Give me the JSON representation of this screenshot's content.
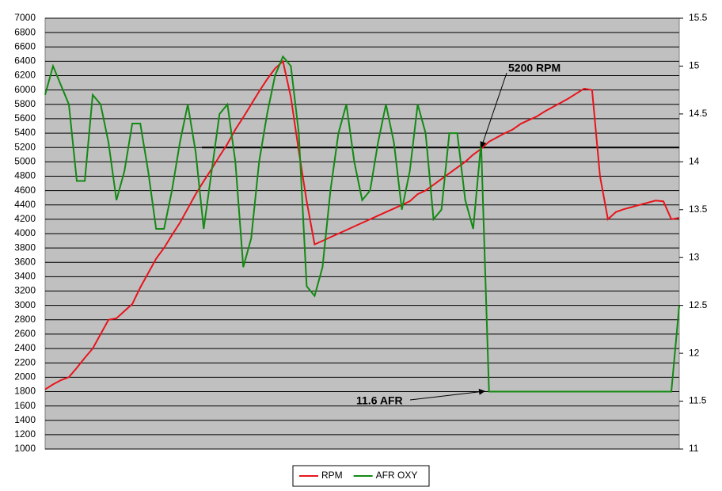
{
  "chart_data": {
    "type": "line",
    "series": [
      {
        "name": "RPM",
        "color": "#e8141c",
        "values": [
          1830,
          1900,
          1960,
          2000,
          2130,
          2270,
          2400,
          2600,
          2800,
          2820,
          2920,
          3020,
          3250,
          3450,
          3650,
          3800,
          3980,
          4150,
          4350,
          4550,
          4730,
          4900,
          5080,
          5250,
          5450,
          5620,
          5800,
          5980,
          6150,
          6300,
          6400,
          5900,
          5150,
          4450,
          3850,
          3900,
          3950,
          4000,
          4050,
          4100,
          4150,
          4200,
          4250,
          4300,
          4350,
          4400,
          4450,
          4550,
          4600,
          4680,
          4760,
          4840,
          4920,
          5000,
          5100,
          5180,
          5280,
          5340,
          5400,
          5450,
          5530,
          5580,
          5630,
          5700,
          5760,
          5820,
          5880,
          5950,
          6020,
          6000,
          4800,
          4200,
          4300,
          4340,
          4370,
          4400,
          4430,
          4460,
          4450,
          4200,
          4220
        ]
      },
      {
        "name": "AFR OXY",
        "color": "#138a13",
        "axis": "y2",
        "values": [
          14.7,
          15.0,
          14.8,
          14.6,
          13.8,
          13.8,
          14.7,
          14.6,
          14.2,
          13.6,
          13.9,
          14.4,
          14.4,
          13.9,
          13.3,
          13.3,
          13.7,
          14.2,
          14.6,
          14.1,
          13.3,
          13.9,
          14.5,
          14.6,
          14.0,
          12.9,
          13.2,
          14.0,
          14.5,
          14.9,
          15.1,
          15.0,
          14.3,
          12.7,
          12.6,
          12.9,
          13.7,
          14.3,
          14.6,
          14.0,
          13.6,
          13.7,
          14.2,
          14.6,
          14.2,
          13.5,
          13.9,
          14.6,
          14.3,
          13.4,
          13.5,
          14.3,
          14.3,
          13.6,
          13.3,
          14.2,
          11.6,
          11.6,
          11.6,
          11.6,
          11.6,
          11.6,
          11.6,
          11.6,
          11.6,
          11.6,
          11.6,
          11.6,
          11.6,
          11.6,
          11.6,
          11.6,
          11.6,
          11.6,
          11.6,
          11.6,
          11.6,
          11.6,
          11.6,
          11.6,
          12.5
        ]
      }
    ],
    "ylim": [
      1000,
      7000
    ],
    "yticks": [
      1000,
      1200,
      1400,
      1600,
      1800,
      2000,
      2200,
      2400,
      2600,
      2800,
      3000,
      3200,
      3400,
      3600,
      3800,
      4000,
      4200,
      4400,
      4600,
      4800,
      5000,
      5200,
      5400,
      5600,
      5800,
      6000,
      6200,
      6400,
      6600,
      6800,
      7000
    ],
    "y2lim": [
      11,
      15.5
    ],
    "y2ticks": [
      11,
      11.5,
      12,
      12.5,
      13,
      13.5,
      14,
      14.5,
      15,
      15.5
    ],
    "grid": true,
    "reference_line": 5200,
    "annotations": [
      "5200 RPM",
      "11.6 AFR"
    ],
    "legend": "bottom"
  }
}
